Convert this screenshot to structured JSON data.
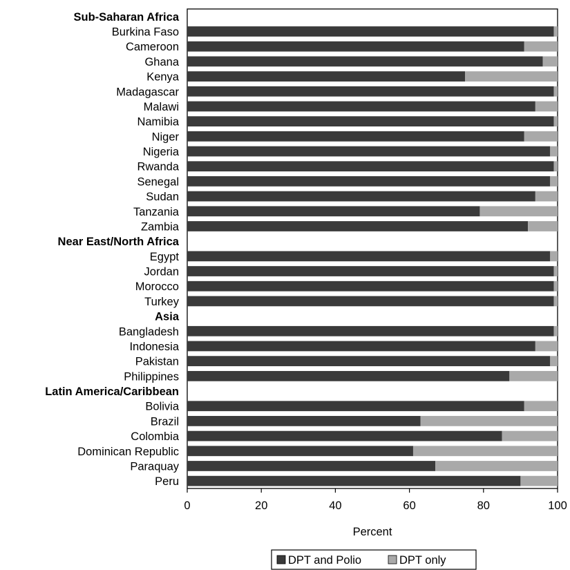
{
  "colors": {
    "DPT and Polio": "#3a3a3a",
    "DPT only": "#a9a9a9",
    "plot_border": "#000000",
    "background": "#ffffff"
  },
  "chart_data": {
    "type": "bar",
    "orientation": "horizontal",
    "stacked": true,
    "xlabel": "Percent",
    "ylabel": "",
    "xlim": [
      0,
      100
    ],
    "xticks": [
      0,
      20,
      40,
      60,
      80,
      100
    ],
    "grid": false,
    "legend_position": "bottom",
    "rows": [
      {
        "label": "Sub-Saharan Africa",
        "group_header": true
      },
      {
        "label": "Burkina Faso",
        "values": [
          99,
          1
        ]
      },
      {
        "label": "Cameroon",
        "values": [
          91,
          9
        ]
      },
      {
        "label": "Ghana",
        "values": [
          96,
          4
        ]
      },
      {
        "label": "Kenya",
        "values": [
          75,
          25
        ]
      },
      {
        "label": "Madagascar",
        "values": [
          99,
          1
        ]
      },
      {
        "label": "Malawi",
        "values": [
          94,
          6
        ]
      },
      {
        "label": "Namibia",
        "values": [
          99,
          1
        ]
      },
      {
        "label": "Niger",
        "values": [
          91,
          9
        ]
      },
      {
        "label": "Nigeria",
        "values": [
          98,
          2
        ]
      },
      {
        "label": "Rwanda",
        "values": [
          99,
          1
        ]
      },
      {
        "label": "Senegal",
        "values": [
          98,
          2
        ]
      },
      {
        "label": "Sudan",
        "values": [
          94,
          6
        ]
      },
      {
        "label": "Tanzania",
        "values": [
          79,
          21
        ]
      },
      {
        "label": "Zambia",
        "values": [
          92,
          8
        ]
      },
      {
        "label": "Near East/North Africa",
        "group_header": true
      },
      {
        "label": "Egypt",
        "values": [
          98,
          2
        ]
      },
      {
        "label": "Jordan",
        "values": [
          99,
          1
        ]
      },
      {
        "label": "Morocco",
        "values": [
          99,
          1
        ]
      },
      {
        "label": "Turkey",
        "values": [
          99,
          1
        ]
      },
      {
        "label": "Asia",
        "group_header": true
      },
      {
        "label": "Bangladesh",
        "values": [
          99,
          1
        ]
      },
      {
        "label": "Indonesia",
        "values": [
          94,
          6
        ]
      },
      {
        "label": "Pakistan",
        "values": [
          98,
          2
        ]
      },
      {
        "label": "Philippines",
        "values": [
          87,
          13
        ]
      },
      {
        "label": "Latin America/Caribbean",
        "group_header": true
      },
      {
        "label": "Bolivia",
        "values": [
          91,
          9
        ]
      },
      {
        "label": "Brazil",
        "values": [
          63,
          37
        ]
      },
      {
        "label": "Colombia",
        "values": [
          85,
          15
        ]
      },
      {
        "label": "Dominican Republic",
        "values": [
          61,
          39
        ]
      },
      {
        "label": "Paraquay",
        "values": [
          67,
          33
        ]
      },
      {
        "label": "Peru",
        "values": [
          90,
          10
        ]
      }
    ],
    "series": [
      {
        "name": "DPT and Polio"
      },
      {
        "name": "DPT only"
      }
    ]
  }
}
